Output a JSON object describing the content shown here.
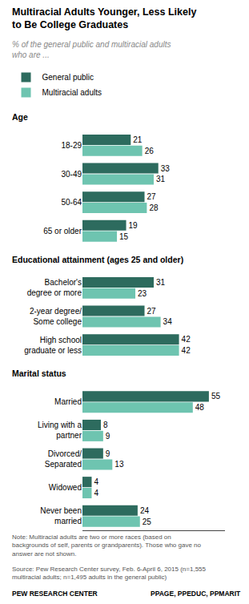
{
  "chart_data": {
    "type": "bar",
    "orientation": "horizontal",
    "title": "Multiracial Adults Younger, Less Likely\nto Be College Graduates",
    "subtitle": "% of the general public and multiracial adults\nwho are ...",
    "categories": [
      "Age",
      "18-29",
      "30-49",
      "50-64",
      "65 or older",
      "Educational attainment (ages 25 and older)",
      "Bachelor's\ndegree or more",
      "2-year degree/\nSome college",
      "High school\ngraduate or less",
      "Marital status",
      "Married",
      "Living with a\npartner",
      "Divorced/\nSeparated",
      "Widowed",
      "Never been\nmarried"
    ],
    "series": [
      {
        "name": "General public",
        "color": "#2d6b5e",
        "values": [
          null,
          21,
          33,
          27,
          19,
          null,
          31,
          27,
          42,
          null,
          55,
          8,
          9,
          4,
          24
        ]
      },
      {
        "name": "Multiracial adults",
        "color": "#6ec4b0",
        "values": [
          null,
          26,
          31,
          28,
          15,
          null,
          23,
          34,
          42,
          null,
          48,
          9,
          13,
          4,
          25
        ]
      }
    ],
    "xlim": [
      0,
      62
    ],
    "grid": false,
    "legend": "upper left",
    "data_labels": true,
    "tick_labels": "y",
    "note": "Note: Multiracial adults are two or more races (based on\nbackgrounds of self, parents or grandparents). Those who gave no\nanswer are not shown.",
    "source": "Source: Pew Research Center survey, Feb. 6-April 6, 2015 (n=1,555\nmultiracial adults; n=1,495 adults in the general public)",
    "footer_left": "PEW RESEARCH CENTER",
    "footer_right": "PPAGE, PPEDUC, PPMARIT"
  }
}
